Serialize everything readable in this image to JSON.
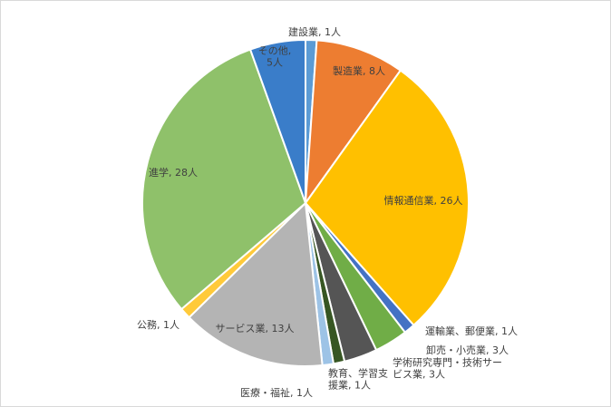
{
  "chart_data": {
    "type": "pie",
    "title": "",
    "unit_suffix": "人",
    "slices": [
      {
        "label": "建設業",
        "value": 1,
        "color": "#5B9BD5",
        "label_lines": [
          "建設業, 1人"
        ]
      },
      {
        "label": "製造業",
        "value": 8,
        "color": "#ED7D31",
        "label_lines": [
          "製造業, 8人"
        ]
      },
      {
        "label": "情報通信業",
        "value": 26,
        "color": "#FFC000",
        "label_lines": [
          "情報通信業, 26人"
        ]
      },
      {
        "label": "運輸業、郵便業",
        "value": 1,
        "color": "#4472C4",
        "label_lines": [
          "運輸業、郵便業, 1人"
        ]
      },
      {
        "label": "卸売・小売業",
        "value": 3,
        "color": "#70AD47",
        "label_lines": [
          "卸売・小売業, 3人"
        ]
      },
      {
        "label": "学術研究専門・技術サービス業",
        "value": 3,
        "color": "#555555",
        "label_lines": [
          "学術研究専門・技術サー",
          "ビス業, 3人"
        ]
      },
      {
        "label": "教育、学習支援業",
        "value": 1,
        "color": "#375623",
        "label_lines": [
          "教育、学習支",
          "援業, 1人"
        ]
      },
      {
        "label": "医療・福祉",
        "value": 1,
        "color": "#9DC3E6",
        "label_lines": [
          "医療・福祉, 1人"
        ]
      },
      {
        "label": "サービス業",
        "value": 13,
        "color": "#B4B4B4",
        "label_lines": [
          "サービス業, 13人"
        ]
      },
      {
        "label": "公務",
        "value": 1,
        "color": "#FFCA3A",
        "label_lines": [
          "公務, 1人"
        ]
      },
      {
        "label": "進学",
        "value": 28,
        "color": "#8FC16A",
        "label_lines": [
          "進学, 28人"
        ]
      },
      {
        "label": "その他",
        "value": 5,
        "color": "#3A7DC9",
        "label_lines": [
          "その他,",
          "5人"
        ]
      }
    ]
  }
}
